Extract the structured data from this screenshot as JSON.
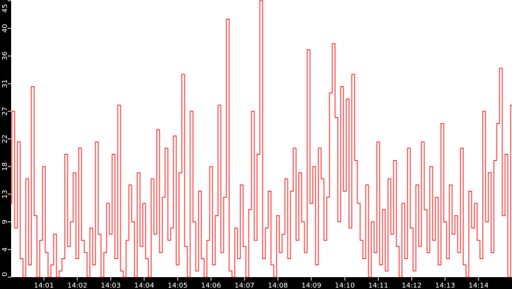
{
  "chart_data": {
    "type": "line",
    "title": "",
    "xlabel": "",
    "ylabel": "",
    "start_time": "14:00:00",
    "sample_interval_s": 5,
    "ylim": [
      0,
      45
    ],
    "grid": false,
    "legend": "none",
    "series_color": "#ff0000",
    "plot_background": "#ffffff",
    "axis_background": "#000000",
    "y_ticks": [
      0,
      4.5,
      9,
      13.5,
      18,
      22.5,
      27,
      31.5,
      36,
      40.5,
      45
    ],
    "y_tick_labels": [
      "0",
      "4",
      "9",
      "13",
      "18",
      "22",
      "27",
      "31",
      "36",
      "40",
      "45"
    ],
    "x_ticks_s": [
      60,
      120,
      180,
      240,
      300,
      360,
      420,
      480,
      540,
      600,
      660,
      720,
      780,
      840
    ],
    "x_tick_labels": [
      "14:01",
      "14:02",
      "14:03",
      "14:04",
      "14:05",
      "14:06",
      "14:07",
      "14:08",
      "14:09",
      "14:10",
      "14:11",
      "14:12",
      "14:13",
      "14:14"
    ],
    "values": [
      12,
      27,
      8,
      22,
      3,
      0,
      16,
      2,
      31,
      10,
      0,
      6,
      18,
      4,
      0,
      2,
      7,
      0,
      1,
      3,
      20,
      5,
      9,
      17,
      3,
      21,
      6,
      4,
      0,
      8,
      2,
      22,
      7,
      0,
      4,
      12,
      7,
      20,
      3,
      28,
      1,
      0,
      6,
      15,
      9,
      0,
      17,
      5,
      12,
      3,
      0,
      16,
      7,
      24,
      4,
      13,
      21,
      6,
      8,
      23,
      2,
      17,
      33,
      5,
      0,
      27,
      9,
      1,
      14,
      3,
      0,
      6,
      18,
      2,
      10,
      28,
      4,
      13,
      42,
      1,
      0,
      8,
      3,
      15,
      5,
      0,
      11,
      27,
      6,
      20,
      45,
      3,
      8,
      14,
      2,
      0,
      10,
      4,
      7,
      16,
      3,
      14,
      21,
      6,
      17,
      9,
      4,
      37,
      12,
      18,
      2,
      21,
      16,
      6,
      13,
      30,
      38,
      26,
      9,
      31,
      14,
      29,
      8,
      33,
      19,
      12,
      6,
      3,
      15,
      0,
      9,
      4,
      22,
      2,
      11,
      1,
      16,
      7,
      19,
      5,
      0,
      12,
      3,
      21,
      8,
      1,
      15,
      5,
      22,
      11,
      4,
      18,
      6,
      13,
      2,
      25,
      9,
      3,
      15,
      7,
      10,
      4,
      21,
      2,
      0,
      14,
      8,
      12,
      6,
      3,
      27,
      9,
      17,
      4,
      19,
      25,
      34,
      10,
      20,
      0,
      28
    ]
  }
}
